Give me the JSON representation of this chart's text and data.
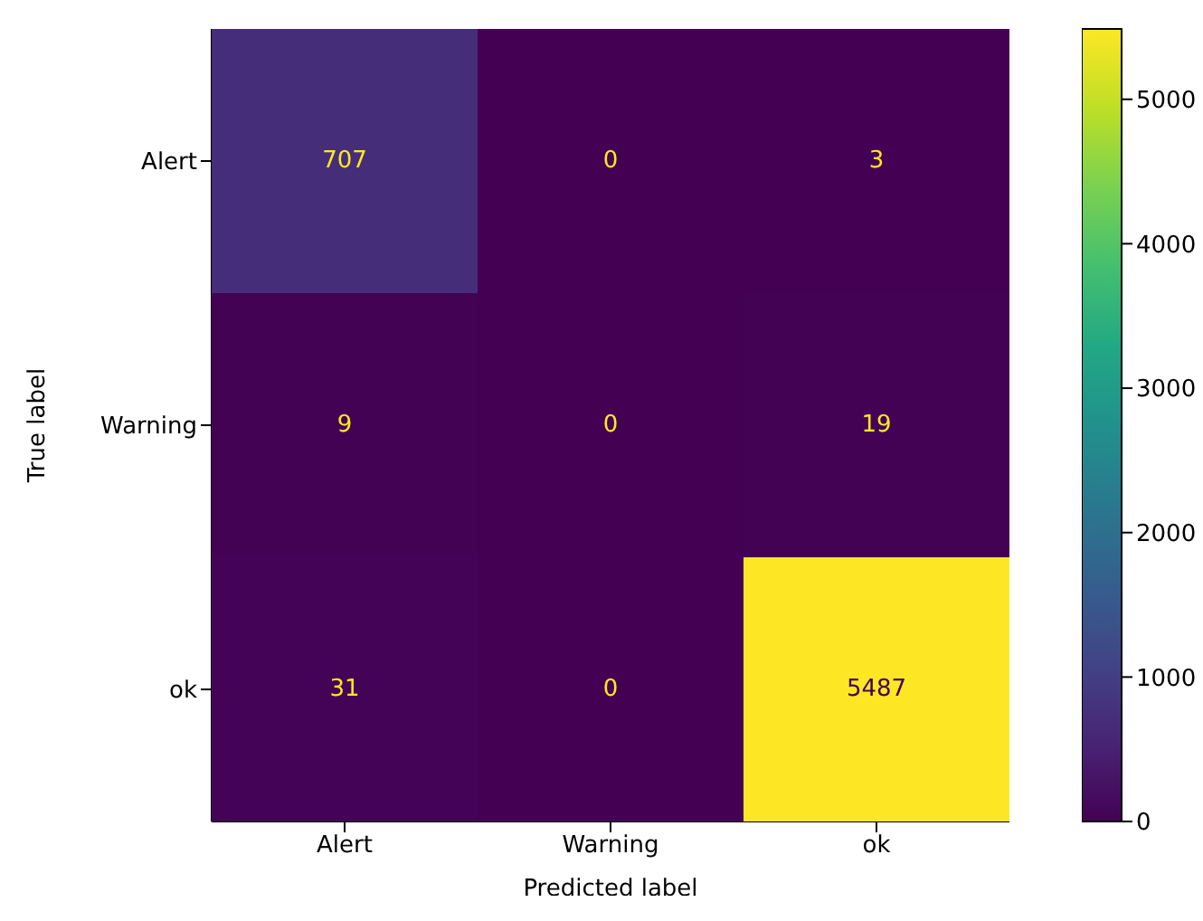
{
  "chart_data": {
    "type": "heatmap",
    "xlabel": "Predicted label",
    "ylabel": "True label",
    "categories": [
      "Alert",
      "Warning",
      "ok"
    ],
    "y_categories": [
      "Alert",
      "Warning",
      "ok"
    ],
    "cells": [
      [
        707,
        0,
        3
      ],
      [
        9,
        0,
        19
      ],
      [
        31,
        0,
        5487
      ]
    ],
    "data_labels": true,
    "clim": [
      0,
      5487
    ],
    "cticks": [
      0,
      1000,
      2000,
      3000,
      4000,
      5000
    ]
  }
}
